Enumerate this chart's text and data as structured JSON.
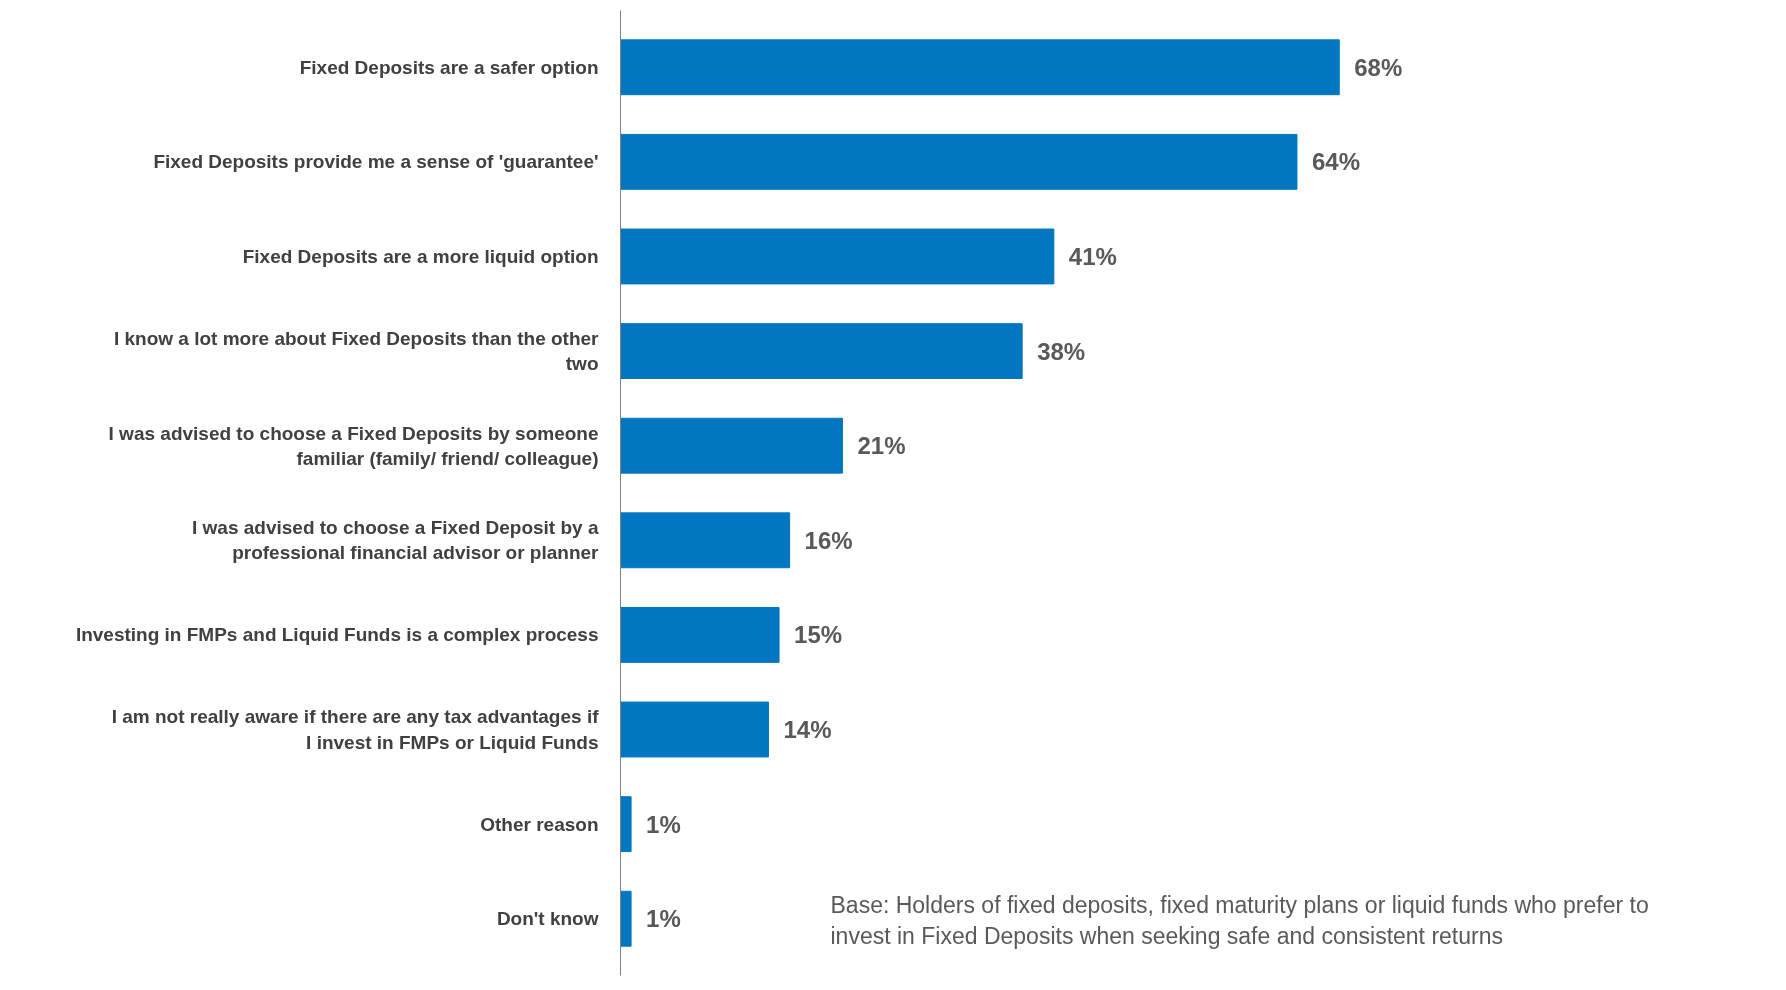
{
  "chart_data": {
    "type": "bar",
    "orientation": "horizontal",
    "categories": [
      "Fixed Deposits are a safer option",
      "Fixed Deposits provide me a sense of 'guarantee'",
      "Fixed Deposits are a more liquid option",
      "I know a lot more about Fixed Deposits than the other two",
      "I was advised to choose a Fixed Deposits by someone familiar (family/ friend/ colleague)",
      "I was advised to choose a Fixed Deposit by a professional financial advisor or planner",
      "Investing in FMPs and Liquid Funds is a complex process",
      "I am not really aware if there are any tax advantages if I invest in FMPs or Liquid Funds",
      "Other reason",
      "Don't know"
    ],
    "values": [
      68,
      64,
      41,
      38,
      21,
      16,
      15,
      14,
      1,
      1
    ],
    "value_labels": [
      "68%",
      "64%",
      "41%",
      "38%",
      "21%",
      "16%",
      "15%",
      "14%",
      "1%",
      "1%"
    ],
    "color": "#0077c0",
    "grid": false,
    "annotations": [
      "Base: Holders of fixed deposits, fixed maturity plans or liquid funds who prefer to invest in Fixed Deposits when seeking safe and consistent returns"
    ]
  }
}
